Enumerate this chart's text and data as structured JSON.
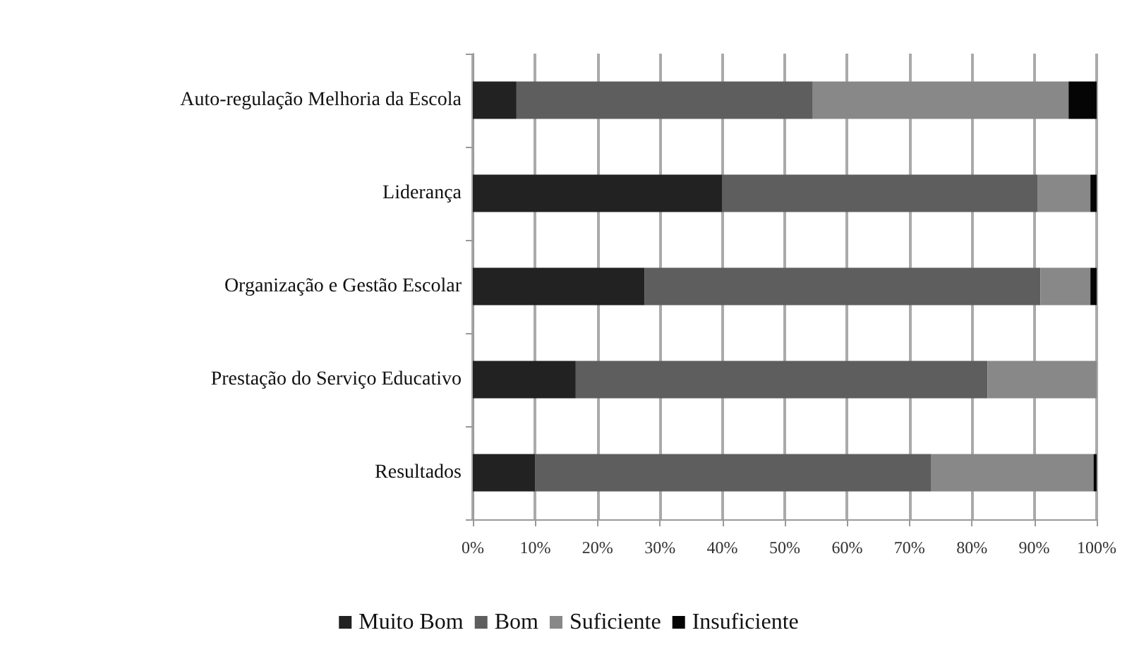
{
  "chart_data": {
    "type": "bar",
    "orientation": "horizontal",
    "stacked": true,
    "categories": [
      "Auto-regulação Melhoria da Escola",
      "Liderança",
      "Organização e Gestão Escolar",
      "Prestação do Serviço Educativo",
      "Resultados"
    ],
    "series": [
      {
        "name": "Muito Bom",
        "color": "#222222",
        "values": [
          7,
          40,
          27.5,
          16.5,
          10
        ]
      },
      {
        "name": "Bom",
        "color": "#5e5e5e",
        "values": [
          47.5,
          50.5,
          63.5,
          66,
          63.5
        ]
      },
      {
        "name": "Suficiente",
        "color": "#888888",
        "values": [
          41,
          8.5,
          8,
          17.5,
          26
        ]
      },
      {
        "name": "Insuficiente",
        "color": "#050505",
        "values": [
          4.5,
          1,
          1,
          0,
          0.5
        ]
      }
    ],
    "xlim": [
      0,
      100
    ],
    "xticks": [
      {
        "value": 0,
        "label": "0%"
      },
      {
        "value": 10,
        "label": "10%"
      },
      {
        "value": 20,
        "label": "20%"
      },
      {
        "value": 30,
        "label": "30%"
      },
      {
        "value": 40,
        "label": "40%"
      },
      {
        "value": 50,
        "label": "50%"
      },
      {
        "value": 60,
        "label": "60%"
      },
      {
        "value": 70,
        "label": "70%"
      },
      {
        "value": 80,
        "label": "80%"
      },
      {
        "value": 90,
        "label": "90%"
      },
      {
        "value": 100,
        "label": "100%"
      }
    ],
    "grid": "x",
    "legend": "bottom"
  }
}
